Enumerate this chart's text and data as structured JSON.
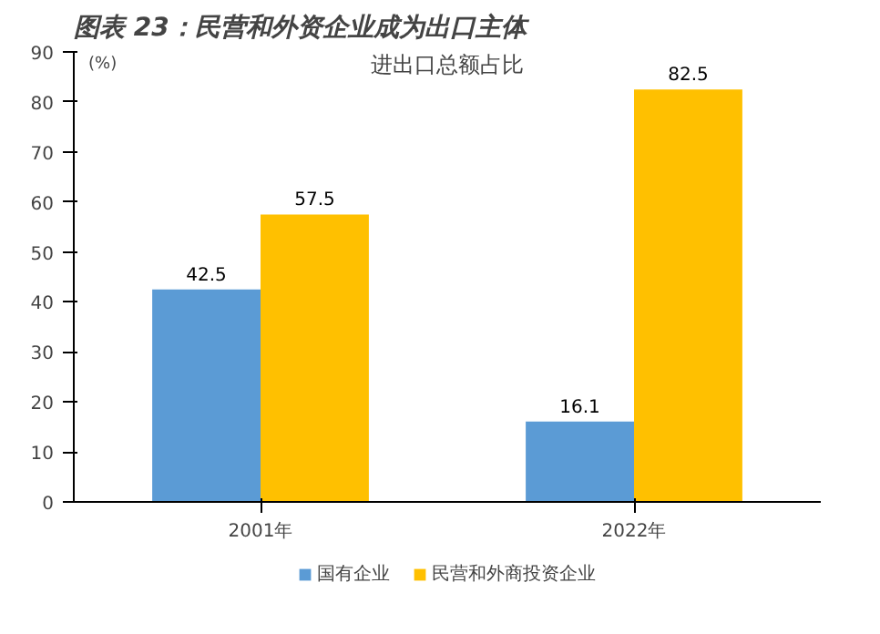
{
  "chart_data": {
    "type": "bar",
    "title": "图表 23：民营和外资企业成为出口主体",
    "subtitle": "进出口总额占比",
    "ylabel": "(%)",
    "categories": [
      "2001年",
      "2022年"
    ],
    "series": [
      {
        "name": "国有企业",
        "color": "#5b9bd5",
        "values": [
          42.5,
          16.1
        ]
      },
      {
        "name": "民营和外商投资企业",
        "color": "#ffc000",
        "values": [
          57.5,
          82.5
        ]
      }
    ],
    "ylim": [
      0,
      90
    ],
    "yticks": [
      0,
      10,
      20,
      30,
      40,
      50,
      60,
      70,
      80,
      90
    ],
    "grid": false,
    "legend": "bottom",
    "data_labels": true
  }
}
